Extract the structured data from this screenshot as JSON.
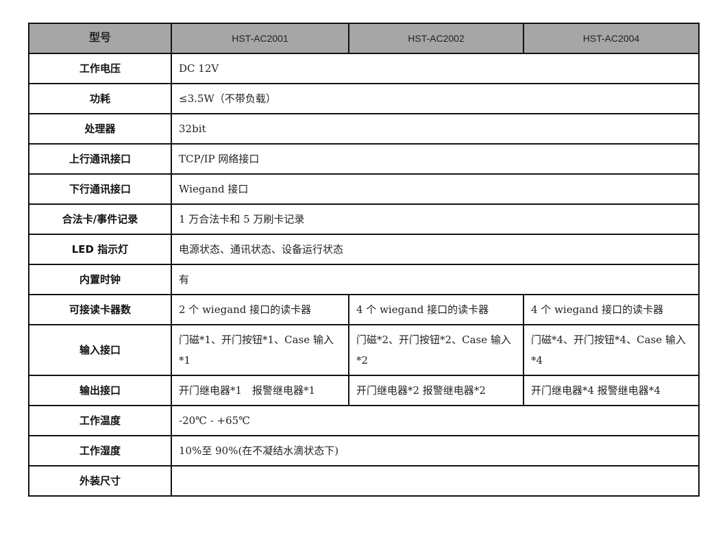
{
  "header": {
    "label": "型号",
    "models": [
      "HST-AC2001",
      "HST-AC2002",
      "HST-AC2004"
    ]
  },
  "rows": [
    {
      "label": "工作电压",
      "value": "DC 12V"
    },
    {
      "label": "功耗",
      "value": "≤3.5W（不带负载）"
    },
    {
      "label": "处理器",
      "value": "32bit"
    },
    {
      "label": "上行通讯接口",
      "value": "TCP/IP 网络接口"
    },
    {
      "label": "下行通讯接口",
      "value": "Wiegand 接口"
    },
    {
      "label": "合法卡/事件记录",
      "value": "1 万合法卡和 5 万刷卡记录"
    },
    {
      "label": "LED 指示灯",
      "value": "电源状态、通讯状态、设备运行状态"
    },
    {
      "label": "内置时钟",
      "value": "有"
    },
    {
      "label": "可接读卡器数",
      "values": [
        "2 个 wiegand 接口的读卡器",
        "4 个 wiegand 接口的读卡器",
        "4 个 wiegand 接口的读卡器"
      ]
    },
    {
      "label": "输入接口",
      "values": [
        "门磁*1、开门按钮*1、Case 输入*1",
        "门磁*2、开门按钮*2、Case 输入*2",
        "门磁*4、开门按钮*4、Case 输入*4"
      ],
      "tall": true
    },
    {
      "label": "输出接口",
      "values": [
        "开门继电器*1　报警继电器*1",
        "开门继电器*2 报警继电器*2",
        "开门继电器*4 报警继电器*4"
      ]
    },
    {
      "label": "工作温度",
      "value": "-20℃ - +65℃"
    },
    {
      "label": "工作湿度",
      "value": "10%至 90%(在不凝结水滴状态下)"
    },
    {
      "label": "外装尺寸",
      "value": ""
    }
  ]
}
